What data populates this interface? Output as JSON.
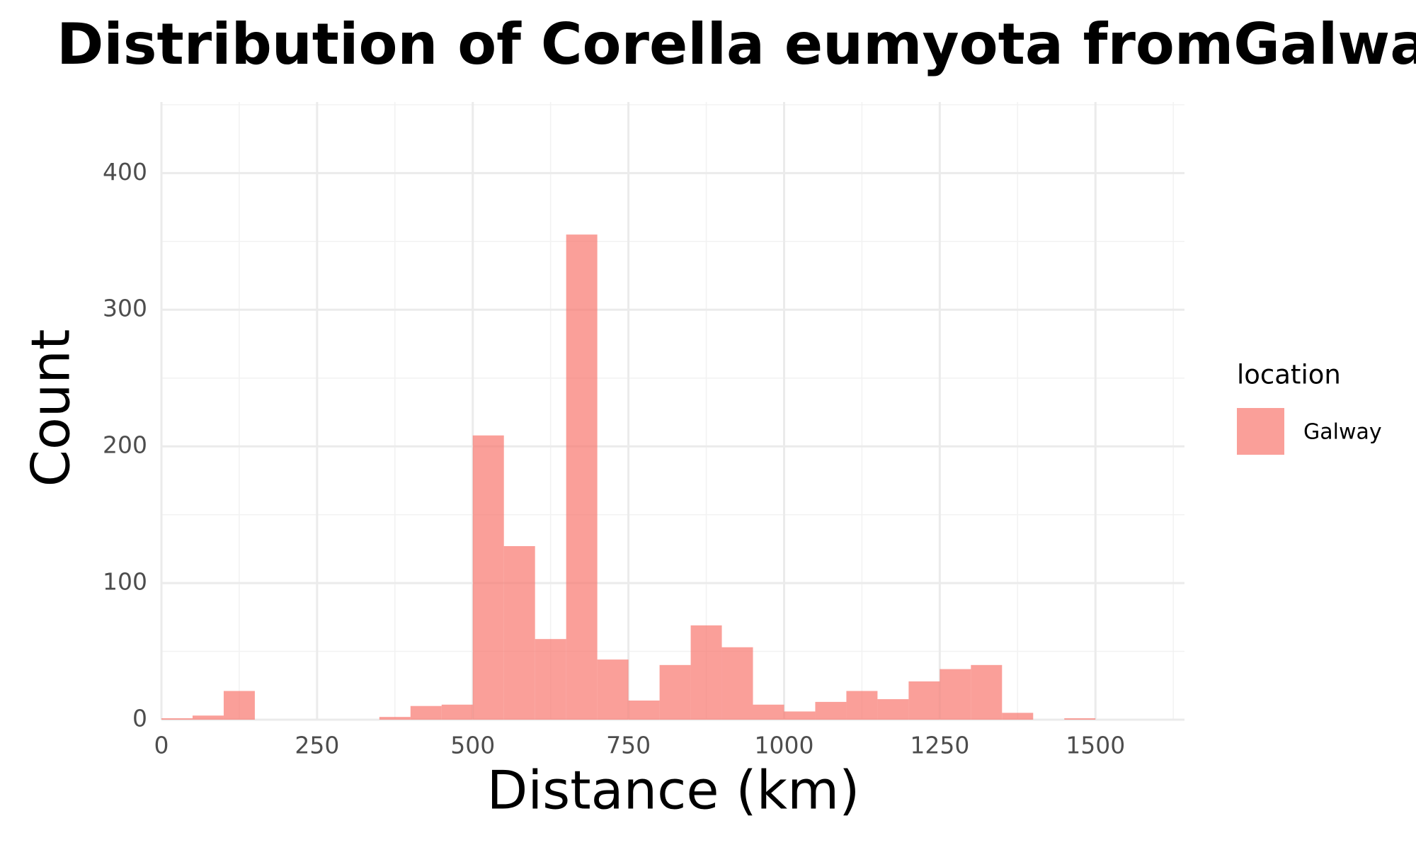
{
  "chart_data": {
    "type": "histogram",
    "title": "Distribution of Corella eumyota fromGalway",
    "x_label": "Distance (km)",
    "y_label": "Count",
    "legend_title": "location",
    "bins": [
      0,
      50,
      100,
      150,
      200,
      250,
      300,
      350,
      400,
      450,
      500,
      550,
      600,
      650,
      700,
      750,
      800,
      850,
      900,
      950,
      1000,
      1050,
      1100,
      1150,
      1200,
      1250,
      1300,
      1350,
      1400,
      1450,
      1500
    ],
    "series": [
      {
        "name": "Galway",
        "color": "#F8766D",
        "opacity": 0.7,
        "values": [
          1,
          3,
          21,
          0,
          0,
          0,
          0,
          2,
          10,
          11,
          208,
          127,
          59,
          355,
          44,
          14,
          40,
          69,
          53,
          11,
          6,
          13,
          21,
          15,
          28,
          37,
          40,
          5,
          0,
          1
        ]
      }
    ],
    "xlim": [
      0,
      1643
    ],
    "ylim": [
      0,
      452
    ],
    "xticks": [
      0,
      250,
      500,
      750,
      1000,
      1250,
      1500
    ],
    "minor_xticks": [
      125,
      375,
      625,
      875,
      1125,
      1375,
      1625
    ],
    "yticks": [
      0,
      100,
      200,
      300,
      400
    ],
    "minor_yticks": [
      50,
      150,
      250,
      350,
      450
    ],
    "grid": true
  }
}
